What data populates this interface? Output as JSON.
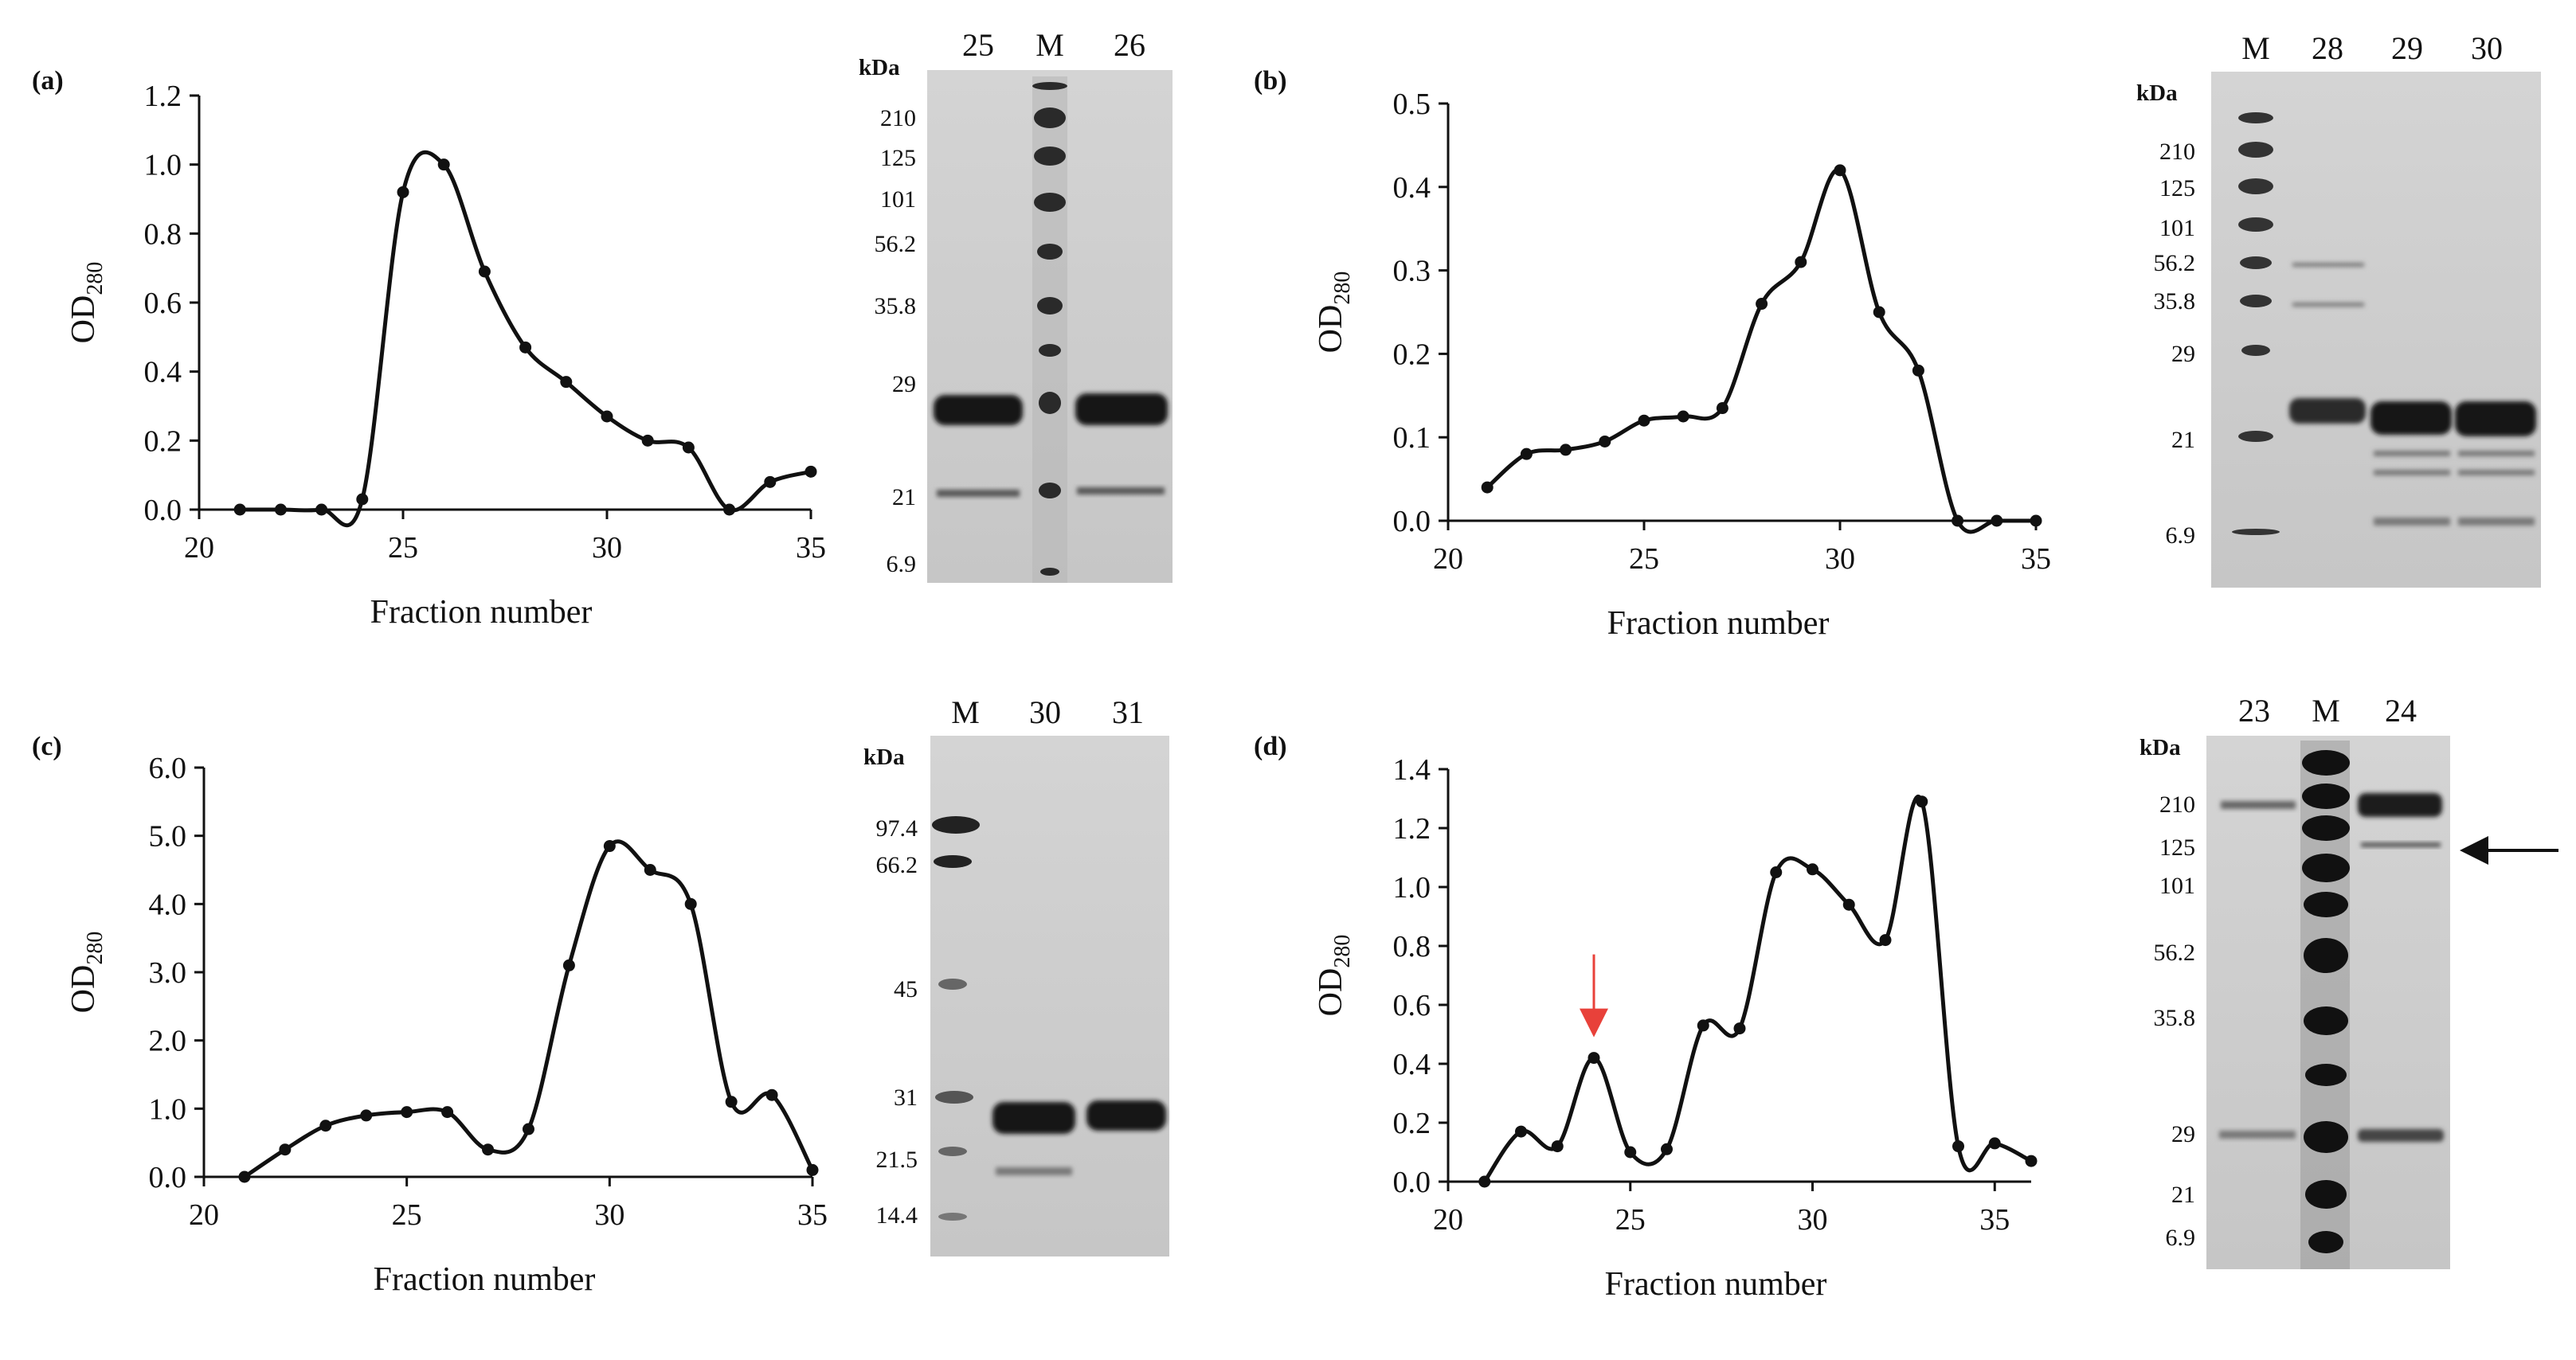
{
  "chart_data": [
    {
      "type": "line",
      "panel_label": "(a)",
      "xlabel": "Fraction number",
      "ylabel_main": "OD",
      "ylabel_sub": "280",
      "xlim": [
        20,
        35
      ],
      "ylim": [
        0,
        1.2
      ],
      "xticks": [
        {
          "value": 20,
          "label": "20"
        },
        {
          "value": 25,
          "label": "25"
        },
        {
          "value": 30,
          "label": "30"
        },
        {
          "value": 35,
          "label": "35"
        }
      ],
      "yticks": [
        {
          "value": 0,
          "label": "0.0"
        },
        {
          "value": 0.2,
          "label": "0.2"
        },
        {
          "value": 0.4,
          "label": "0.4"
        },
        {
          "value": 0.6,
          "label": "0.6"
        },
        {
          "value": 0.8,
          "label": "0.8"
        },
        {
          "value": 1.0,
          "label": "1.0"
        },
        {
          "value": 1.2,
          "label": "1.2"
        }
      ],
      "x": [
        21,
        22,
        23,
        24,
        25,
        26,
        27,
        28,
        29,
        30,
        31,
        32,
        33,
        34,
        35
      ],
      "y": [
        0.0,
        0.0,
        0.0,
        0.03,
        0.92,
        1.0,
        0.69,
        0.47,
        0.37,
        0.27,
        0.2,
        0.18,
        0.0,
        0.08,
        0.11
      ]
    },
    {
      "type": "line",
      "panel_label": "(b)",
      "xlabel": "Fraction number",
      "ylabel_main": "OD",
      "ylabel_sub": "280",
      "xlim": [
        20,
        35
      ],
      "ylim": [
        0,
        0.5
      ],
      "xticks": [
        {
          "value": 20,
          "label": "20"
        },
        {
          "value": 25,
          "label": "25"
        },
        {
          "value": 30,
          "label": "30"
        },
        {
          "value": 35,
          "label": "35"
        }
      ],
      "yticks": [
        {
          "value": 0,
          "label": "0.0"
        },
        {
          "value": 0.1,
          "label": "0.1"
        },
        {
          "value": 0.2,
          "label": "0.2"
        },
        {
          "value": 0.3,
          "label": "0.3"
        },
        {
          "value": 0.4,
          "label": "0.4"
        },
        {
          "value": 0.5,
          "label": "0.5"
        }
      ],
      "x": [
        21,
        22,
        23,
        24,
        25,
        26,
        27,
        28,
        29,
        30,
        31,
        32,
        33,
        34,
        35
      ],
      "y": [
        0.04,
        0.08,
        0.085,
        0.095,
        0.12,
        0.125,
        0.135,
        0.26,
        0.31,
        0.42,
        0.25,
        0.18,
        0.0,
        0.0,
        0.0
      ]
    },
    {
      "type": "line",
      "panel_label": "(c)",
      "xlabel": "Fraction number",
      "ylabel_main": "OD",
      "ylabel_sub": "280",
      "xlim": [
        20,
        35
      ],
      "ylim": [
        0,
        6.0
      ],
      "xticks": [
        {
          "value": 20,
          "label": "20"
        },
        {
          "value": 25,
          "label": "25"
        },
        {
          "value": 30,
          "label": "30"
        },
        {
          "value": 35,
          "label": "35"
        }
      ],
      "yticks": [
        {
          "value": 0,
          "label": "0.0"
        },
        {
          "value": 1,
          "label": "1.0"
        },
        {
          "value": 2,
          "label": "2.0"
        },
        {
          "value": 3,
          "label": "3.0"
        },
        {
          "value": 4,
          "label": "4.0"
        },
        {
          "value": 5,
          "label": "5.0"
        },
        {
          "value": 6,
          "label": "6.0"
        }
      ],
      "x": [
        21,
        22,
        23,
        24,
        25,
        26,
        27,
        28,
        29,
        30,
        31,
        32,
        33,
        34,
        35
      ],
      "y": [
        0.0,
        0.4,
        0.75,
        0.9,
        0.95,
        0.95,
        0.4,
        0.7,
        3.1,
        4.85,
        4.5,
        4.0,
        1.1,
        1.2,
        0.1
      ]
    },
    {
      "type": "line",
      "panel_label": "(d)",
      "xlabel": "Fraction number",
      "ylabel_main": "OD",
      "ylabel_sub": "280",
      "xlim": [
        20,
        36
      ],
      "ylim": [
        0,
        1.4
      ],
      "xticks": [
        {
          "value": 20,
          "label": "20"
        },
        {
          "value": 25,
          "label": "25"
        },
        {
          "value": 30,
          "label": "30"
        },
        {
          "value": 35,
          "label": "35"
        }
      ],
      "yticks": [
        {
          "value": 0,
          "label": "0.0"
        },
        {
          "value": 0.2,
          "label": "0.2"
        },
        {
          "value": 0.4,
          "label": "0.4"
        },
        {
          "value": 0.6,
          "label": "0.6"
        },
        {
          "value": 0.8,
          "label": "0.8"
        },
        {
          "value": 1.0,
          "label": "1.0"
        },
        {
          "value": 1.2,
          "label": "1.2"
        },
        {
          "value": 1.4,
          "label": "1.4"
        }
      ],
      "x": [
        21,
        22,
        23,
        24,
        25,
        26,
        27,
        28,
        29,
        30,
        31,
        32,
        33,
        34,
        35,
        36
      ],
      "y": [
        0.0,
        0.17,
        0.12,
        0.42,
        0.1,
        0.11,
        0.53,
        0.52,
        1.05,
        1.06,
        0.94,
        0.82,
        1.29,
        0.12,
        0.13,
        0.07
      ],
      "marker_x": 24,
      "marker_color": "#e8413a"
    }
  ],
  "gels": [
    {
      "unit": "kDa",
      "lanes": [
        "25",
        "M",
        "26"
      ],
      "marker_labels": [
        "210",
        "125",
        "101",
        "56.2",
        "35.8",
        "29",
        "21",
        "6.9"
      ]
    },
    {
      "unit": "kDa",
      "lanes": [
        "M",
        "28",
        "29",
        "30"
      ],
      "marker_labels": [
        "210",
        "125",
        "101",
        "56.2",
        "35.8",
        "29",
        "21",
        "6.9"
      ]
    },
    {
      "unit": "kDa",
      "lanes": [
        "M",
        "30",
        "31"
      ],
      "marker_labels": [
        "97.4",
        "66.2",
        "45",
        "31",
        "21.5",
        "14.4"
      ]
    },
    {
      "unit": "kDa",
      "lanes": [
        "23",
        "M",
        "24"
      ],
      "marker_labels": [
        "210",
        "125",
        "101",
        "56.2",
        "35.8",
        "29",
        "21",
        "6.9"
      ],
      "arrow_color": "#111111"
    }
  ]
}
